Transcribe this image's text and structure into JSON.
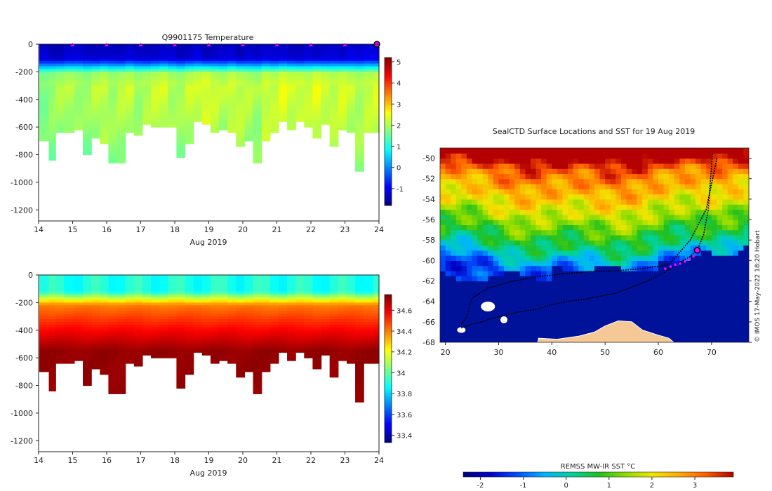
{
  "chart_data": [
    {
      "type": "heatmap",
      "variable": "temperature",
      "title": "Q9901175  Temperature",
      "xlabel": "Aug 2019",
      "ylabel": "",
      "x_ticks": [
        "14",
        "15",
        "16",
        "17",
        "18",
        "19",
        "20",
        "21",
        "22",
        "23",
        "24"
      ],
      "y_ticks": [
        "0",
        "-200",
        "-400",
        "-600",
        "-800",
        "-1000",
        "-1200"
      ],
      "xlim": [
        14,
        24
      ],
      "ylim": [
        -1280,
        0
      ],
      "colorbar": {
        "ticks": [
          "-1",
          "0",
          "1",
          "2",
          "3",
          "4",
          "5"
        ],
        "range": [
          -1.8,
          5.2
        ]
      },
      "profile_dates": [
        14.2,
        14.4,
        14.6,
        14.9,
        15.2,
        15.4,
        15.7,
        15.9,
        16.2,
        16.4,
        16.7,
        16.9,
        17.2,
        17.4,
        17.7,
        17.9,
        18.2,
        18.4,
        18.7,
        18.9,
        19.2,
        19.4,
        19.7,
        19.9,
        20.2,
        20.4,
        20.7,
        20.9,
        21.2,
        21.4,
        21.7,
        21.9,
        22.2,
        22.4,
        22.7,
        22.9,
        23.2,
        23.4,
        23.7,
        23.95
      ],
      "profile_max_depth": [
        700,
        830,
        640,
        630,
        610,
        800,
        680,
        720,
        850,
        850,
        640,
        650,
        580,
        590,
        600,
        590,
        820,
        720,
        560,
        570,
        630,
        610,
        640,
        730,
        700,
        850,
        700,
        640,
        560,
        620,
        560,
        600,
        670,
        570,
        740,
        610,
        640,
        920,
        630,
        630
      ],
      "surface_temp": [
        -1.4,
        -1.5,
        -1.5,
        -1.4,
        -1.3,
        -1.4,
        -1.5,
        -1.4,
        -1.4,
        -1.5,
        -1.3,
        -1.4,
        -1.5,
        -1.4,
        -1.3,
        -1.4,
        -1.5,
        -1.4,
        -1.3,
        -1.5,
        -1.4,
        -1.4,
        -1.3,
        -1.5,
        -1.4,
        -1.4,
        -1.3,
        -1.4,
        -1.3,
        -1.4,
        -1.5,
        -1.3,
        -1.4,
        -1.4,
        -1.3,
        -1.4,
        -1.3,
        -1.3,
        -1.2,
        -1.3
      ],
      "deep_temp": [
        1.8,
        1.9,
        2.0,
        2.1,
        2.0,
        1.9,
        2.1,
        2.2,
        2.0,
        2.1,
        2.2,
        2.0,
        2.1,
        2.2,
        2.3,
        2.1,
        2.0,
        2.2,
        2.3,
        2.4,
        2.2,
        2.1,
        2.3,
        2.2,
        2.1,
        2.0,
        2.3,
        2.2,
        2.4,
        2.3,
        2.3,
        2.2,
        2.4,
        2.3,
        2.2,
        2.3,
        2.2,
        2.1,
        2.2,
        2.3
      ],
      "marker_days": [
        15,
        16,
        17,
        18,
        19,
        20,
        21,
        22,
        23
      ],
      "current_marker_day": 24
    },
    {
      "type": "heatmap",
      "variable": "salinity",
      "title": "",
      "xlabel": "Aug 2019",
      "ylabel": "",
      "x_ticks": [
        "14",
        "15",
        "16",
        "17",
        "18",
        "19",
        "20",
        "21",
        "22",
        "23",
        "24"
      ],
      "y_ticks": [
        "0",
        "-200",
        "-400",
        "-600",
        "-800",
        "-1000",
        "-1200"
      ],
      "xlim": [
        14,
        24
      ],
      "ylim": [
        -1280,
        0
      ],
      "colorbar": {
        "ticks": [
          "33.4",
          "33.6",
          "33.8",
          "34",
          "34.2",
          "34.4",
          "34.6"
        ],
        "range": [
          33.33,
          34.75
        ]
      },
      "surface_salinity": 33.9,
      "deep_salinity": 34.72
    },
    {
      "type": "heatmap",
      "variable": "sea surface temperature map",
      "title": "SealCTD Surface Locations and SST for 19 Aug 2019",
      "x_ticks": [
        "20",
        "30",
        "40",
        "50",
        "60",
        "70"
      ],
      "y_ticks": [
        "-50",
        "-52",
        "-54",
        "-56",
        "-58",
        "-60",
        "-62",
        "-64",
        "-66",
        "-68"
      ],
      "xlim": [
        19,
        77
      ],
      "ylim": [
        -68,
        -49
      ],
      "colorbar": {
        "label": "REMSS MW-IR SST °C",
        "ticks": [
          "-2",
          "-1",
          "0",
          "1",
          "2",
          "3"
        ],
        "range": [
          -2.4,
          3.9
        ]
      },
      "current_location": {
        "lon": 67.3,
        "lat": -59.0
      },
      "recent_positions": [
        [
          61.3,
          -60.8
        ],
        [
          62.3,
          -60.6
        ],
        [
          63.2,
          -60.4
        ],
        [
          64.1,
          -60.3
        ],
        [
          65.0,
          -60.1
        ],
        [
          65.9,
          -59.9
        ],
        [
          66.6,
          -59.6
        ]
      ],
      "track": [
        [
          23,
          -66.6
        ],
        [
          25,
          -66.2
        ],
        [
          27,
          -66.0
        ],
        [
          29,
          -65.6
        ],
        [
          31,
          -65.4
        ],
        [
          34,
          -65.0
        ],
        [
          37,
          -64.8
        ],
        [
          40,
          -64.3
        ],
        [
          43,
          -64.0
        ],
        [
          46,
          -63.8
        ],
        [
          49,
          -63.5
        ],
        [
          52,
          -63.2
        ],
        [
          55,
          -62.6
        ],
        [
          58,
          -62.0
        ],
        [
          61,
          -61.2
        ],
        [
          64,
          -60.2
        ],
        [
          66,
          -59.6
        ],
        [
          67.3,
          -59.0
        ],
        [
          68.5,
          -57.5
        ],
        [
          69.4,
          -55.0
        ],
        [
          69.8,
          -52.0
        ],
        [
          70.2,
          -49.5
        ]
      ],
      "track_outbound": [
        [
          71,
          -50.0
        ],
        [
          69,
          -55.0
        ],
        [
          66,
          -58.0
        ],
        [
          62,
          -60.4
        ],
        [
          57,
          -60.8
        ],
        [
          52,
          -61.0
        ],
        [
          47,
          -61.1
        ],
        [
          42,
          -61.3
        ],
        [
          37,
          -61.6
        ],
        [
          32,
          -62.1
        ],
        [
          28,
          -62.7
        ],
        [
          25,
          -63.7
        ],
        [
          24,
          -65.5
        ],
        [
          23,
          -66.3
        ]
      ],
      "credit": "© IMOS 17-May-2022 18:20 Hobart"
    }
  ],
  "colors": {
    "jet": [
      "#00007f",
      "#0000ff",
      "#0080ff",
      "#00ffff",
      "#80ff80",
      "#ffff00",
      "#ff8000",
      "#ff0000",
      "#7f0000"
    ],
    "sst_map": [
      "#00007f",
      "#0000c8",
      "#0050ff",
      "#00b4ff",
      "#00d2a0",
      "#20c020",
      "#8cdc00",
      "#f0e600",
      "#ffaa00",
      "#ff5a00",
      "#b40000"
    ],
    "ocean_cold": "#00129a",
    "land": "#f5c896",
    "marker": "#ff00ff",
    "track": "#000000"
  }
}
